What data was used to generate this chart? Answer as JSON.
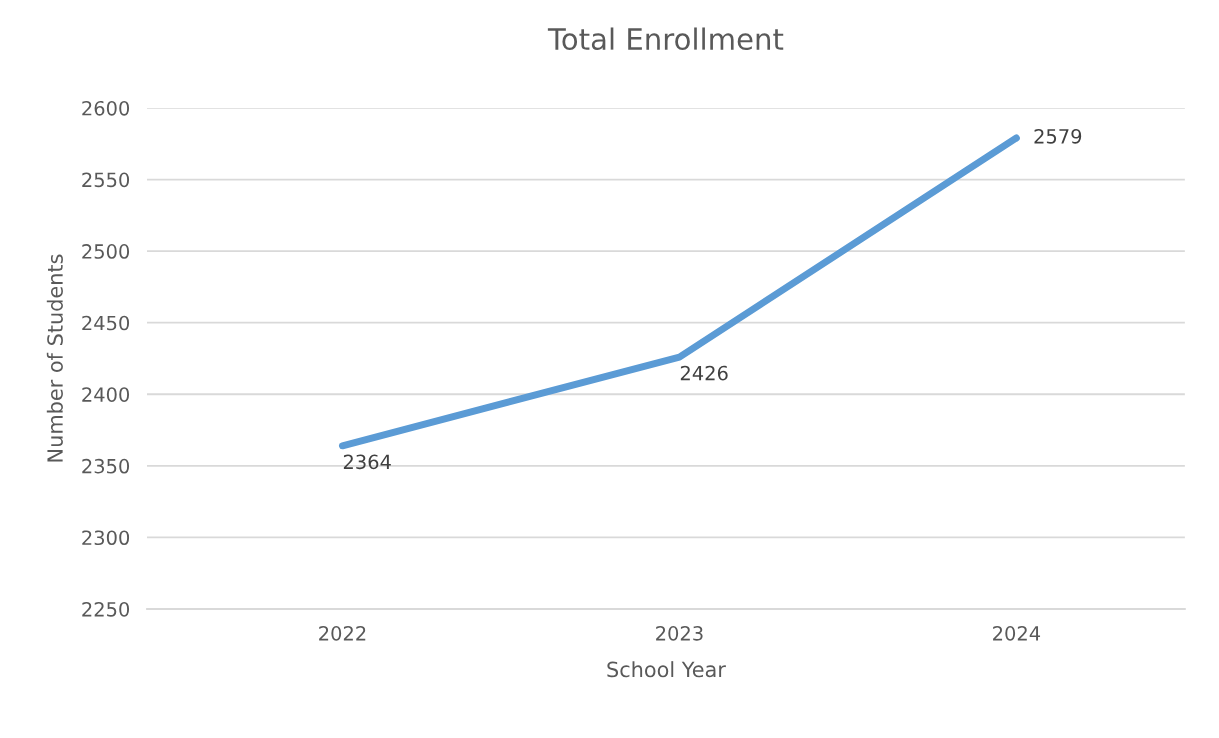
{
  "chart_data": {
    "type": "line",
    "title": "Total Enrollment",
    "xlabel": "School Year",
    "ylabel": "Number of Students",
    "categories": [
      "2022",
      "2023",
      "2024"
    ],
    "series": [
      {
        "color": "#5b9bd5",
        "values": [
          2364,
          2426,
          2579
        ]
      }
    ],
    "ylim": [
      2250,
      2600
    ],
    "yticks": [
      2250,
      2300,
      2350,
      2400,
      2450,
      2500,
      2550,
      2600
    ],
    "grid": "y",
    "marker": "none",
    "line_style": "solid",
    "data_labels": true
  }
}
